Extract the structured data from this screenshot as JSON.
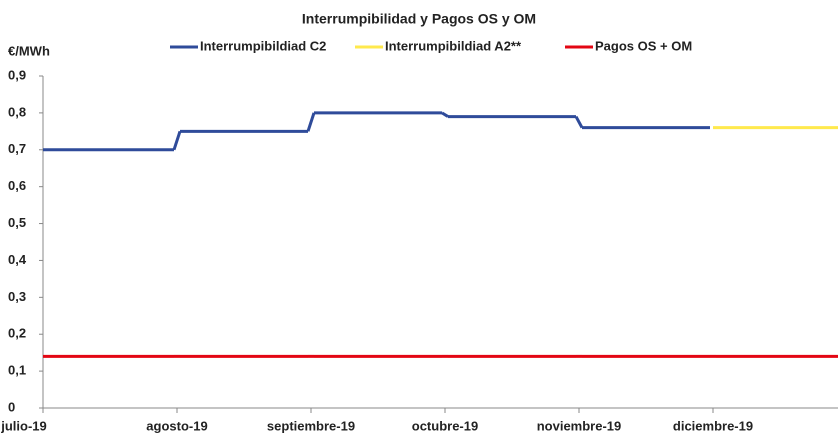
{
  "chart_data": {
    "type": "step-line",
    "title": "Interrumpibilidad y Pagos OS y OM",
    "y_label": "€/MWh",
    "categories": [
      "julio-19",
      "agosto-19",
      "septiembre-19",
      "octubre-19",
      "noviembre-19",
      "diciembre-19"
    ],
    "series": [
      {
        "name": "Interrumpibildiad C2",
        "color": "#2f4b9a",
        "values": [
          0.7,
          0.75,
          0.8,
          0.79,
          0.76,
          null
        ]
      },
      {
        "name": "Interrumpibildiad A2**",
        "color": "#ffe94d",
        "values": [
          null,
          null,
          null,
          null,
          null,
          0.76
        ]
      },
      {
        "name": "Pagos OS + OM",
        "color": "#e30613",
        "values": [
          0.14,
          0.14,
          0.14,
          0.14,
          0.14,
          0.14
        ]
      }
    ],
    "ylim": [
      0,
      0.9
    ],
    "yticks": [
      0,
      {
        "value": 0.1,
        "label": "0,1"
      },
      {
        "value": 0.2,
        "label": "0,2"
      },
      {
        "value": 0.3,
        "label": "0,3"
      },
      {
        "value": 0.4,
        "label": "0,4"
      },
      {
        "value": 0.5,
        "label": "0,5"
      },
      {
        "value": 0.6,
        "label": "0,6"
      },
      {
        "value": 0.7,
        "label": "0,7"
      },
      {
        "value": 0.8,
        "label": "0,8"
      },
      {
        "value": 0.9,
        "label": "0,9"
      }
    ],
    "legend": "top"
  }
}
